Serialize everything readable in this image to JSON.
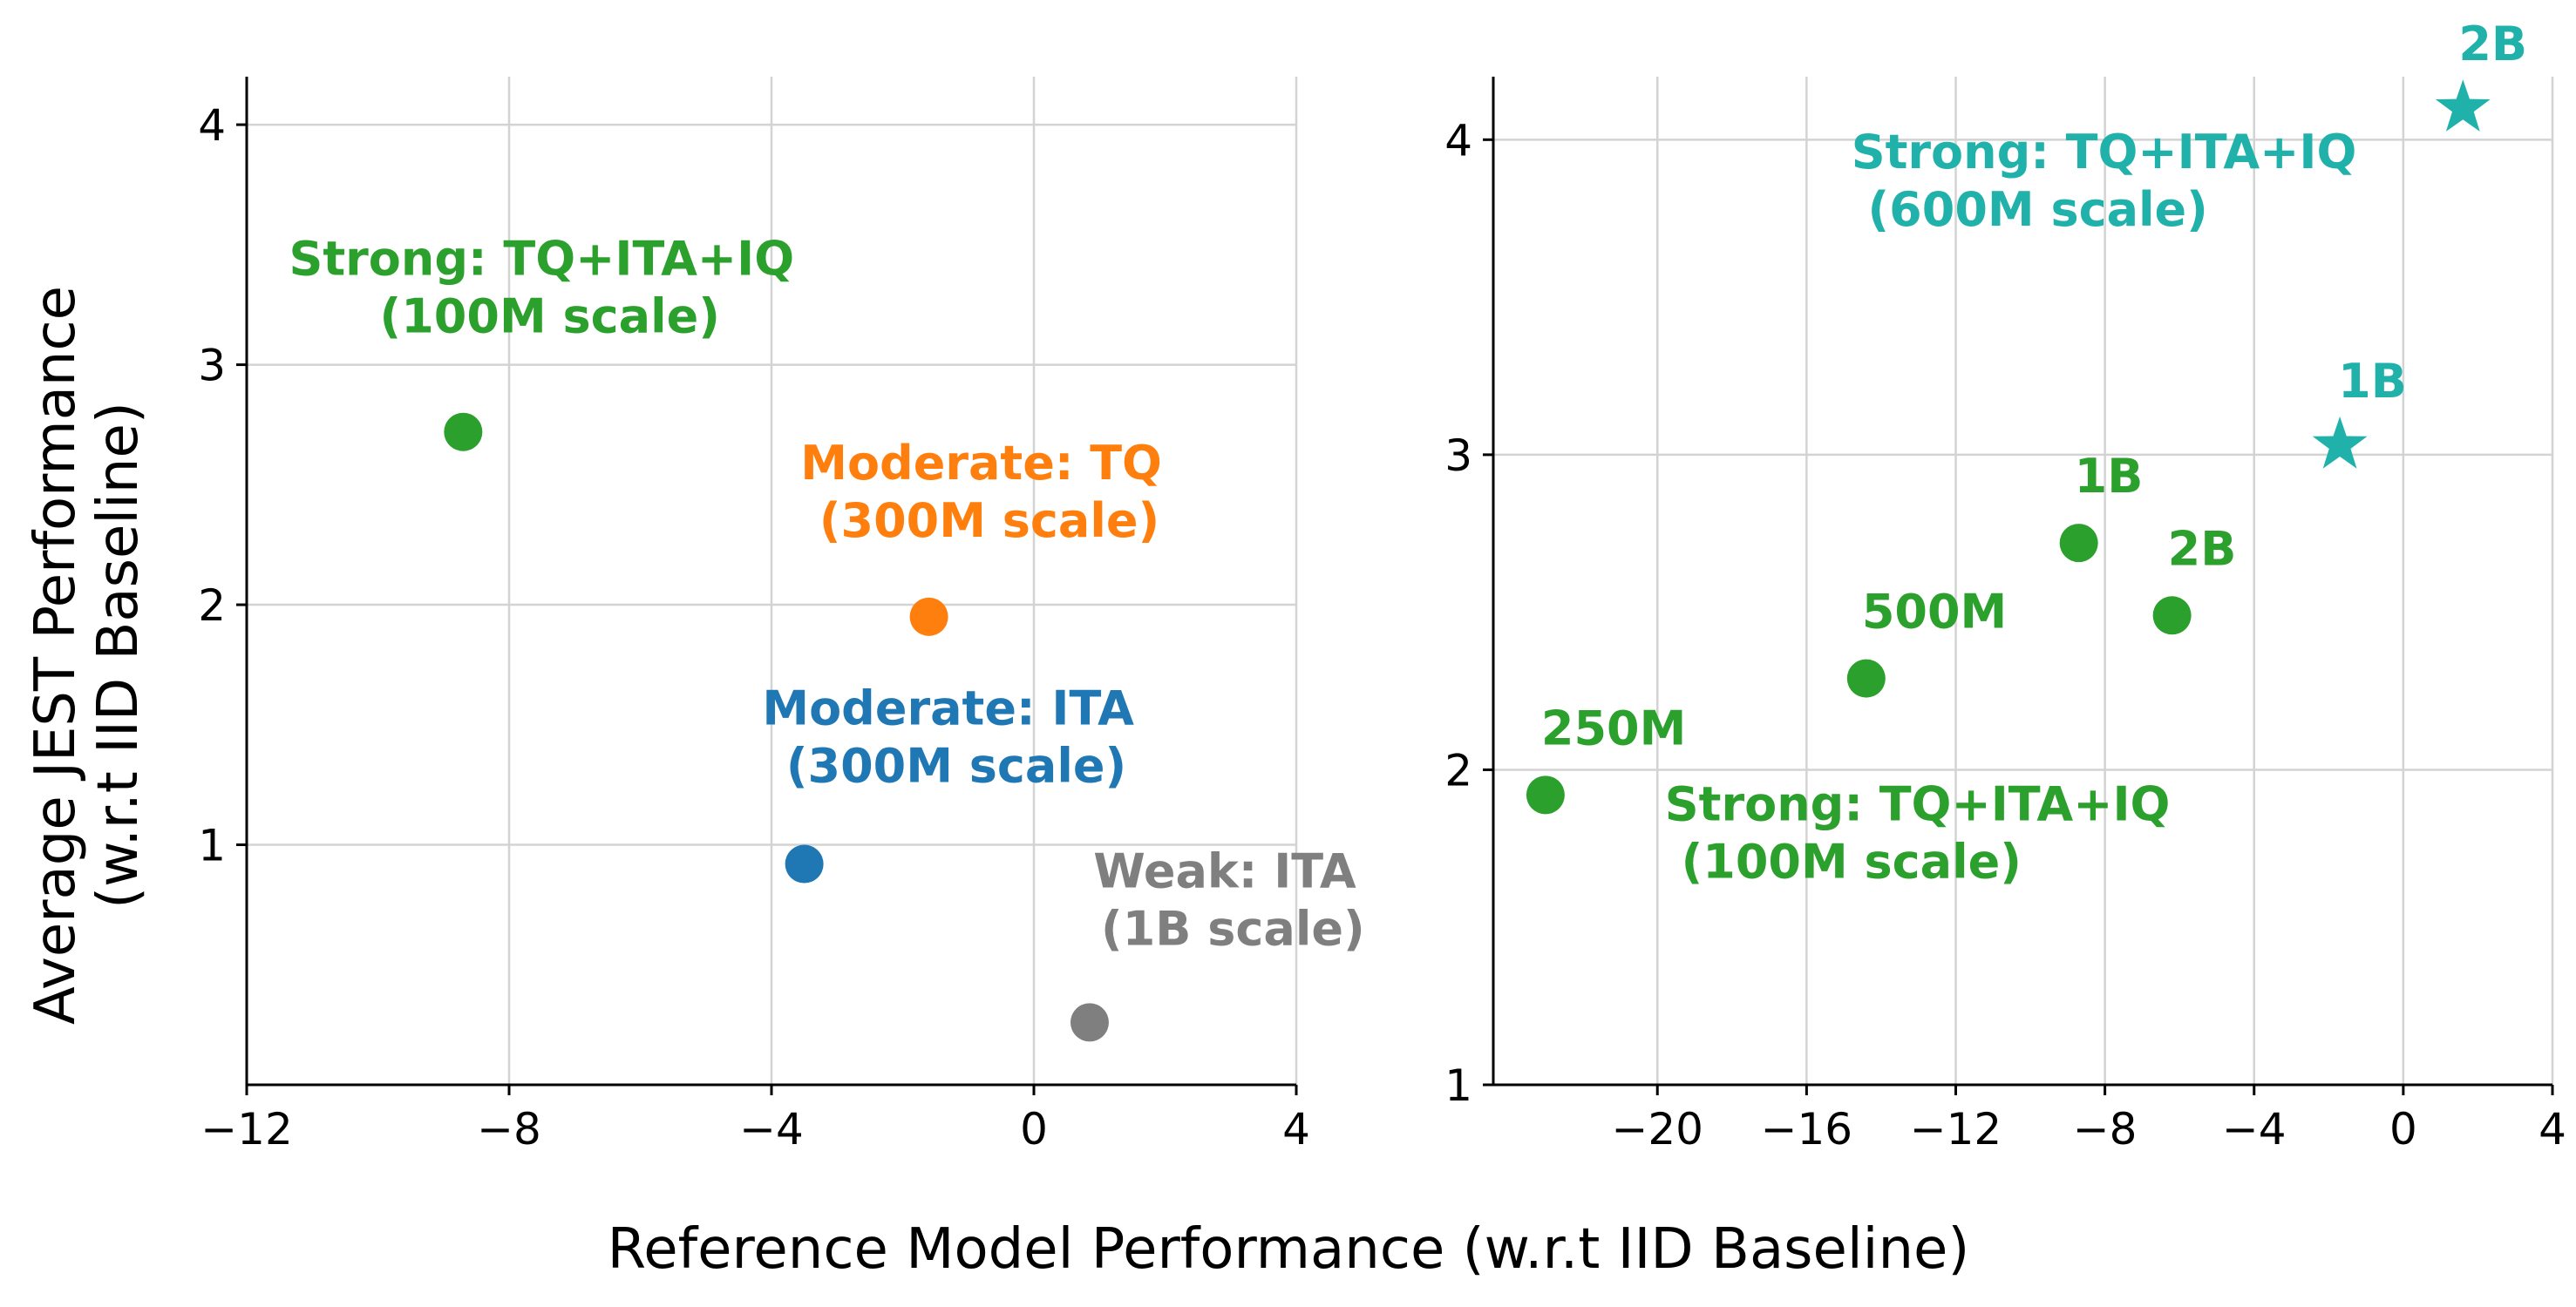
{
  "figure": {
    "shared_xlabel": "Reference Model Performance (w.r.t IID Baseline)",
    "shared_ylabel_line1": "Average JEST Performance",
    "shared_ylabel_line2": "(w.r.t IID Baseline)"
  },
  "colors": {
    "green": "#2ca02c",
    "orange": "#ff7f0e",
    "blue": "#1f77b4",
    "gray": "#7f7f7f",
    "teal": "#20b2aa"
  },
  "chart_data": [
    {
      "type": "scatter",
      "title": "",
      "xlabel": "Reference Model Performance (w.r.t IID Baseline)",
      "ylabel": "Average JEST Performance (w.r.t IID Baseline)",
      "xlim": [
        -12,
        4
      ],
      "ylim": [
        0,
        4.2
      ],
      "xticks": [
        -12,
        -8,
        -4,
        0,
        4
      ],
      "xtick_labels": [
        "−12",
        "−8",
        "−4",
        "0",
        "4"
      ],
      "yticks": [
        1,
        2,
        3,
        4
      ],
      "ytick_labels": [
        "1",
        "2",
        "3",
        "4"
      ],
      "grid": true,
      "points": [
        {
          "x": -8.7,
          "y": 2.72,
          "color": "#2ca02c",
          "marker": "circle",
          "label_line1": "Strong: TQ+ITA+IQ",
          "label_line2": " (100M scale)"
        },
        {
          "x": -1.6,
          "y": 1.95,
          "color": "#ff7f0e",
          "marker": "circle",
          "label_line1": "Moderate: TQ",
          "label_line2": " (300M scale)"
        },
        {
          "x": -3.5,
          "y": 0.92,
          "color": "#1f77b4",
          "marker": "circle",
          "label_line1": "Moderate: ITA",
          "label_line2": " (300M scale)"
        },
        {
          "x": 0.85,
          "y": 0.26,
          "color": "#7f7f7f",
          "marker": "circle",
          "label_line1": "Weak: ITA",
          "label_line2": " (1B scale)"
        }
      ]
    },
    {
      "type": "scatter",
      "title": "",
      "xlabel": "Reference Model Performance (w.r.t IID Baseline)",
      "ylabel": "",
      "xlim": [
        -24.4,
        4
      ],
      "ylim": [
        1,
        4.2
      ],
      "xticks": [
        -20,
        -16,
        -12,
        -8,
        -4,
        0,
        4
      ],
      "xtick_labels": [
        "−20",
        "−16",
        "−12",
        "−8",
        "−4",
        "0",
        "4"
      ],
      "yticks": [
        1,
        2,
        3,
        4
      ],
      "ytick_labels": [
        "1",
        "2",
        "3",
        "4"
      ],
      "grid": true,
      "series": [
        {
          "name": "Strong: TQ+ITA+IQ (100M scale)",
          "color": "#2ca02c",
          "marker": "circle",
          "points": [
            {
              "x": -23.0,
              "y": 1.92,
              "label": "250M"
            },
            {
              "x": -14.4,
              "y": 2.29,
              "label": "500M"
            },
            {
              "x": -8.7,
              "y": 2.72,
              "label": "1B"
            },
            {
              "x": -6.2,
              "y": 2.49,
              "label": "2B"
            }
          ]
        },
        {
          "name": "Strong: TQ+ITA+IQ (600M scale)",
          "color": "#20b2aa",
          "marker": "star",
          "points": [
            {
              "x": -1.7,
              "y": 3.03,
              "label": "1B"
            },
            {
              "x": 1.6,
              "y": 4.1,
              "label": "2B"
            }
          ]
        }
      ],
      "annotations": [
        {
          "text_line1": "Strong: TQ+ITA+IQ",
          "text_line2": " (100M scale)",
          "color": "#2ca02c",
          "x": -19.8,
          "y": 1.84
        },
        {
          "text_line1": "Strong: TQ+ITA+IQ",
          "text_line2": " (600M scale)",
          "color": "#20b2aa",
          "x": -14.8,
          "y": 3.91
        }
      ]
    }
  ]
}
